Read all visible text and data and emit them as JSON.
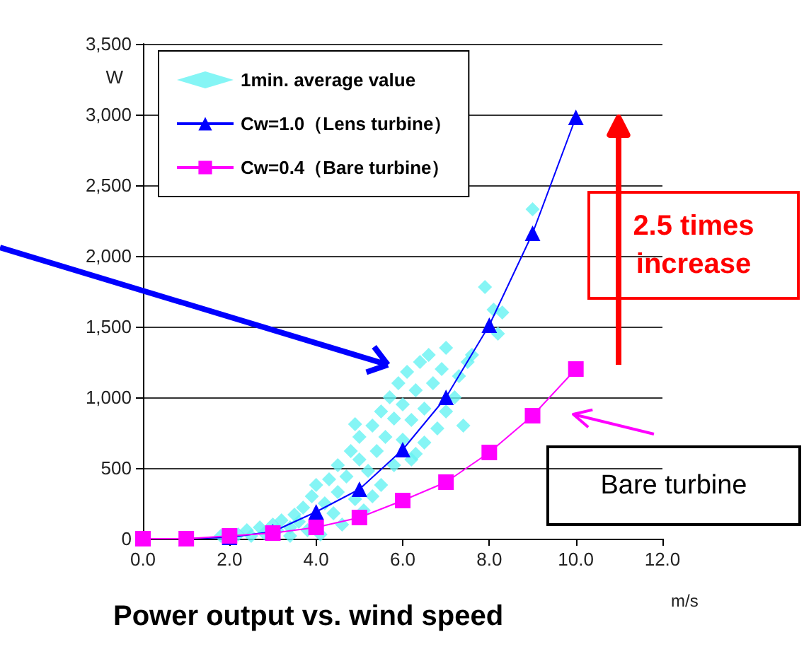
{
  "chart_data": {
    "type": "line",
    "title": "Power output vs. wind speed",
    "xlabel": "m/s",
    "ylabel": "W",
    "xlim": [
      0,
      12
    ],
    "xticks": [
      {
        "value": 0,
        "label": "0.0"
      },
      {
        "value": 2,
        "label": "2.0"
      },
      {
        "value": 4,
        "label": "4.0"
      },
      {
        "value": 6,
        "label": "6.0"
      },
      {
        "value": 8,
        "label": "8.0"
      },
      {
        "value": 10,
        "label": "10.0"
      },
      {
        "value": 12,
        "label": "12.0"
      }
    ],
    "ylim": [
      0,
      3500
    ],
    "yticks": [
      0,
      500,
      {
        "value": 1000,
        "label": "1,000"
      },
      {
        "value": 1500,
        "label": "1,500"
      },
      {
        "value": 2000,
        "label": "2,000"
      },
      {
        "value": 2500,
        "label": "2,500"
      },
      {
        "value": 3000,
        "label": "3,000"
      },
      {
        "value": 3500,
        "label": "3,500"
      }
    ],
    "grid": "y",
    "legend": "top left",
    "annotations": [
      "2.5 times increase",
      "Bare turbine"
    ],
    "series": [
      {
        "name": "1min. average value",
        "type": "scatter",
        "marker": "diamond",
        "color": "#66f2f2",
        "x": [
          1.8,
          2.2,
          2.4,
          2.5,
          2.7,
          2.8,
          3.0,
          3.1,
          3.2,
          3.4,
          3.5,
          3.6,
          3.7,
          3.8,
          3.9,
          4.0,
          4.1,
          4.2,
          4.3,
          4.4,
          4.5,
          4.5,
          4.6,
          4.7,
          4.8,
          4.9,
          5.0,
          5.0,
          5.1,
          5.2,
          5.3,
          5.4,
          5.5,
          5.5,
          5.6,
          5.7,
          5.8,
          5.8,
          5.9,
          6.0,
          6.0,
          6.1,
          6.2,
          6.2,
          6.3,
          6.4,
          6.5,
          6.5,
          6.6,
          6.7,
          6.8,
          6.9,
          7.0,
          7.0,
          7.2,
          7.3,
          7.5,
          7.6,
          7.4,
          7.9,
          8.1,
          8.2,
          8.3,
          9.0,
          3.4,
          4.9,
          5.3,
          6.3
        ],
        "values": [
          20,
          30,
          60,
          20,
          80,
          40,
          100,
          60,
          130,
          80,
          170,
          120,
          220,
          60,
          300,
          380,
          30,
          250,
          420,
          180,
          330,
          520,
          100,
          440,
          620,
          280,
          560,
          720,
          200,
          480,
          800,
          620,
          380,
          900,
          720,
          1000,
          520,
          850,
          1100,
          700,
          950,
          1180,
          560,
          840,
          1050,
          1250,
          680,
          920,
          1300,
          1100,
          780,
          1200,
          900,
          1350,
          1000,
          1150,
          1250,
          1300,
          800,
          1780,
          1620,
          1450,
          1600,
          2330,
          20,
          810,
          300,
          600
        ]
      },
      {
        "name": "Cw=1.0（Lens turbine）",
        "type": "line",
        "marker": "triangle",
        "color": "#0000ff",
        "x": [
          0,
          1,
          2,
          3,
          4,
          5,
          6,
          7,
          8,
          9,
          10
        ],
        "values": [
          0,
          0,
          10,
          50,
          190,
          350,
          630,
          1000,
          1510,
          2160,
          2980
        ]
      },
      {
        "name": "Cw=0.4（Bare turbine）",
        "type": "line",
        "marker": "square",
        "color": "#ff00ff",
        "x": [
          0,
          1,
          2,
          3,
          4,
          5,
          6,
          7,
          8,
          9,
          10
        ],
        "values": [
          0,
          0,
          20,
          40,
          80,
          150,
          270,
          400,
          610,
          870,
          1200
        ]
      }
    ]
  }
}
